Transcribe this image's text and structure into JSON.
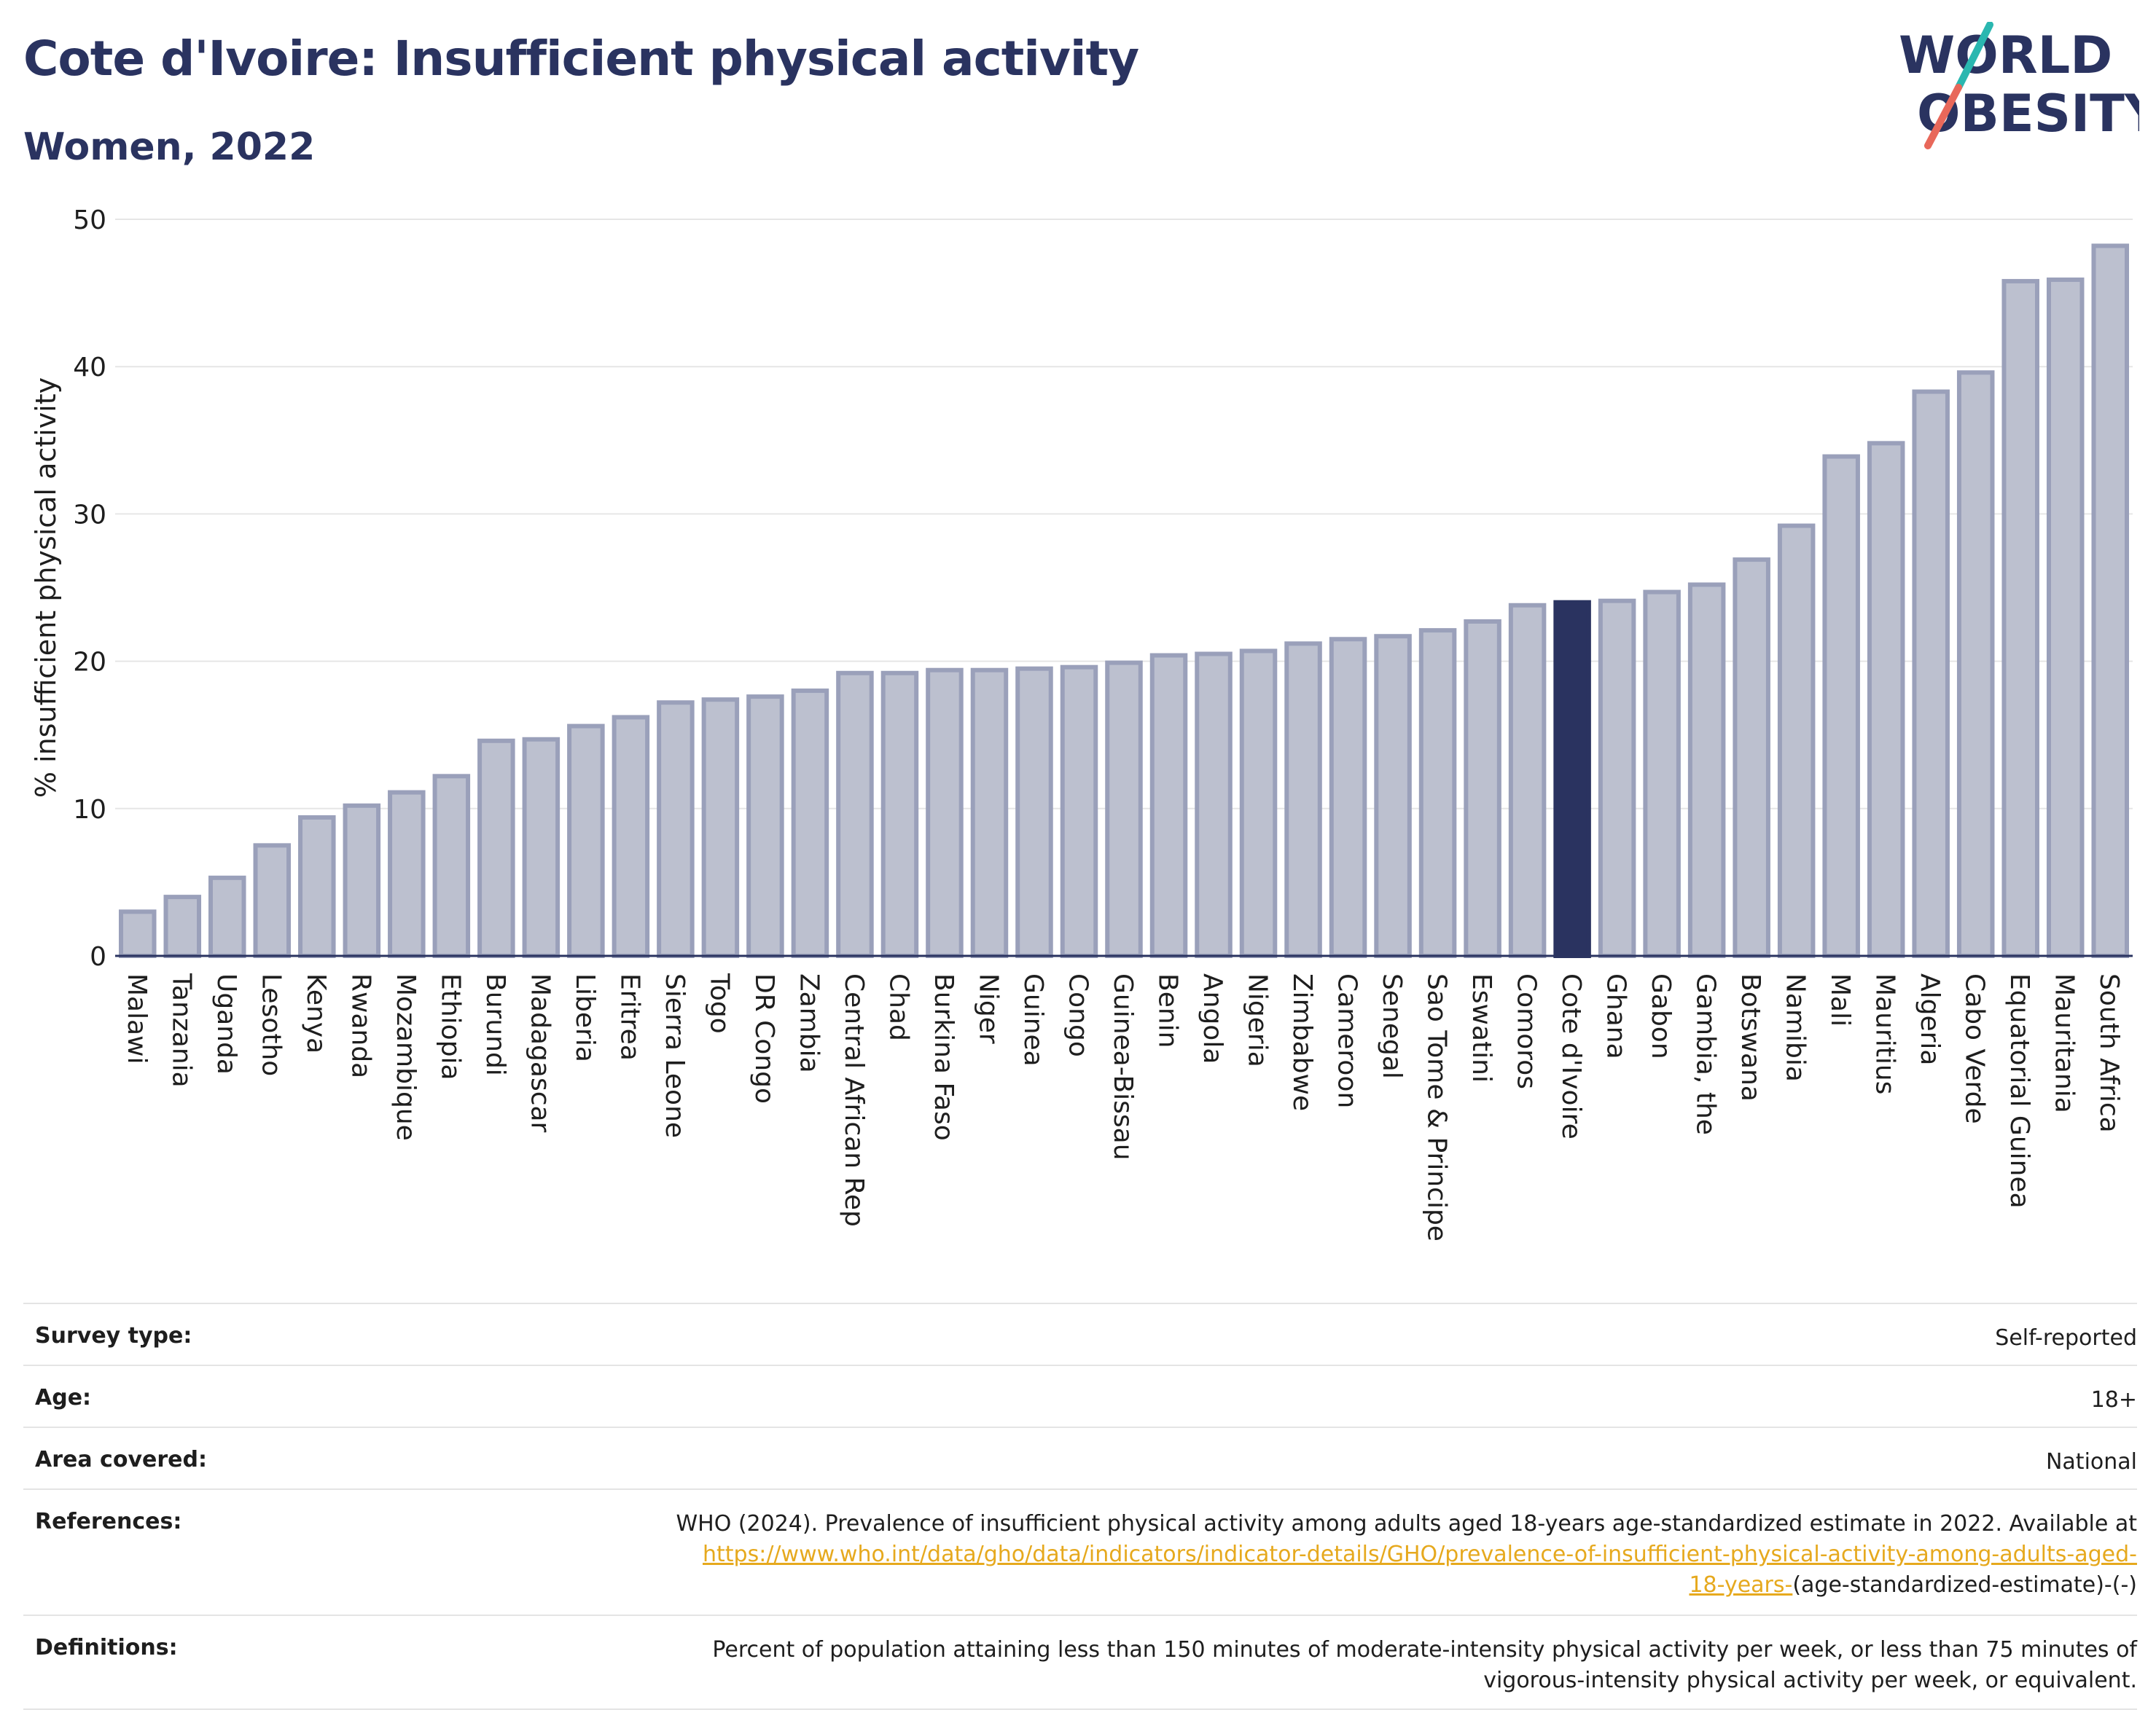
{
  "header": {
    "title": "Cote d'Ivoire: Insufficient physical activity",
    "subtitle": "Women, 2022"
  },
  "logo": {
    "line1": "WORLD",
    "line2": "OBESITY",
    "text_color": "#2a3360",
    "slash_colors": [
      "#2ab7b0",
      "#e8685a"
    ]
  },
  "chart_data": {
    "type": "bar",
    "ylabel": "% insufficient physical activity",
    "xlabel": "",
    "ylim": [
      0,
      50
    ],
    "yticks": [
      0,
      10,
      20,
      30,
      40,
      50
    ],
    "grid": true,
    "highlight": "Cote d'Ivoire",
    "colors": {
      "bar_fill": "#bcc0cf",
      "bar_stroke": "#9aa0ba",
      "highlight": "#2a3360"
    },
    "categories": [
      "Malawi",
      "Tanzania",
      "Uganda",
      "Lesotho",
      "Kenya",
      "Rwanda",
      "Mozambique",
      "Ethiopia",
      "Burundi",
      "Madagascar",
      "Liberia",
      "Eritrea",
      "Sierra Leone",
      "Togo",
      "DR Congo",
      "Zambia",
      "Central African Rep",
      "Chad",
      "Burkina Faso",
      "Niger",
      "Guinea",
      "Congo",
      "Guinea-Bissau",
      "Benin",
      "Angola",
      "Nigeria",
      "Zimbabwe",
      "Cameroon",
      "Senegal",
      "Sao Tome & Principe",
      "Eswatini",
      "Comoros",
      "Cote d'Ivoire",
      "Ghana",
      "Gabon",
      "Gambia, the",
      "Botswana",
      "Namibia",
      "Mali",
      "Mauritius",
      "Algeria",
      "Cabo Verde",
      "Equatorial Guinea",
      "Mauritania",
      "South Africa"
    ],
    "values": [
      3.0,
      4.0,
      5.3,
      7.5,
      9.4,
      10.2,
      11.1,
      12.2,
      14.6,
      14.7,
      15.6,
      16.2,
      17.2,
      17.4,
      17.6,
      18.0,
      19.2,
      19.2,
      19.4,
      19.4,
      19.5,
      19.6,
      19.9,
      20.4,
      20.5,
      20.7,
      21.2,
      21.5,
      21.7,
      22.1,
      22.7,
      23.8,
      24.0,
      24.1,
      24.7,
      25.2,
      26.9,
      29.2,
      33.9,
      34.8,
      38.3,
      39.6,
      45.8,
      45.9,
      48.2
    ]
  },
  "meta": {
    "survey_type": {
      "label": "Survey type:",
      "value": "Self-reported"
    },
    "age": {
      "label": "Age:",
      "value": "18+"
    },
    "area": {
      "label": "Area covered:",
      "value": "National"
    },
    "references": {
      "label": "References:",
      "text": "WHO (2024). Prevalence of insufficient physical activity among adults aged 18-years age-standardized estimate in 2022. Available at",
      "link_line1": "https://www.who.int/data/gho/data/indicators/indicator-details/GHO/prevalence-of-insufficient-physical-activity-among-adults-aged-",
      "link_line2": "18-years-",
      "suffix": "(age-standardized-estimate)-(-)"
    },
    "definitions": {
      "label": "Definitions:",
      "line1": "Percent of population attaining less than 150 minutes of moderate-intensity physical activity per week, or less than 75 minutes of",
      "line2": "vigorous-intensity physical activity per week, or equivalent."
    }
  }
}
